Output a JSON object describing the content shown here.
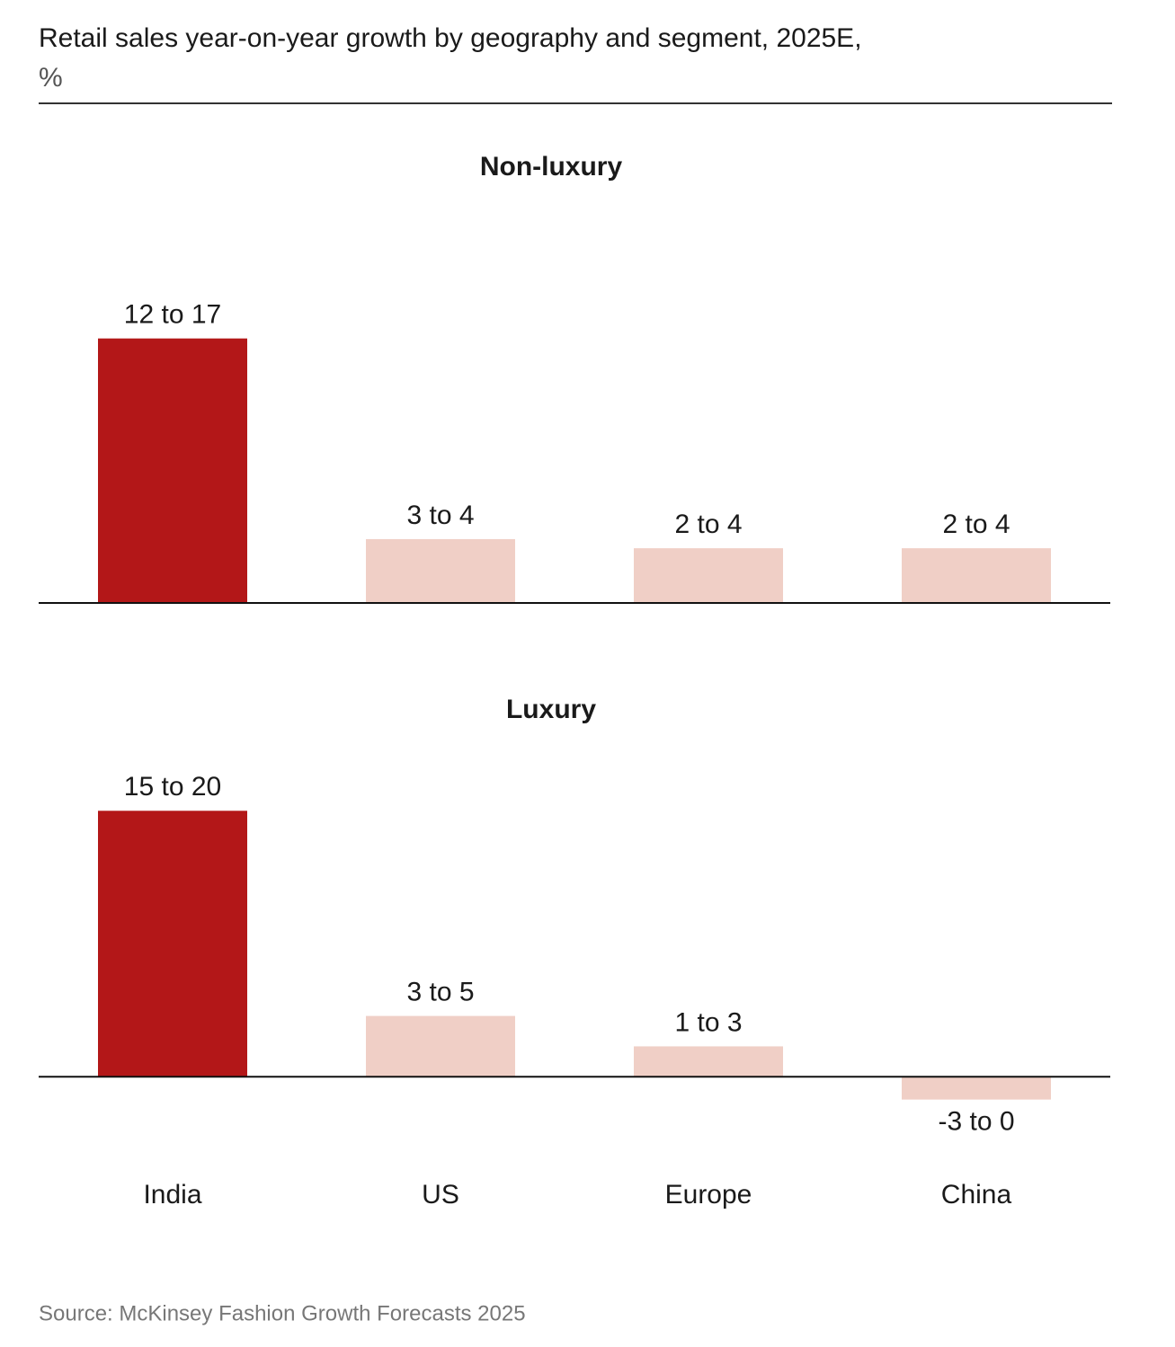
{
  "title": "Retail sales year-on-year growth by geography and segment, 2025E,",
  "unit": "%",
  "source": "Source: McKinsey Fashion Growth Forecasts 2025",
  "chart_data": [
    {
      "type": "bar",
      "title": "Non-luxury",
      "values": [
        14.5,
        3.5,
        3,
        3
      ],
      "value_labels": [
        "12 to 17",
        "3 to 4",
        "2 to 4",
        "2 to 4"
      ],
      "colors": [
        "#b31718",
        "#f0cfc6",
        "#f0cfc6",
        "#f0cfc6"
      ],
      "ylim": [
        0,
        20
      ]
    },
    {
      "type": "bar",
      "title": "Luxury",
      "categories": [
        "India",
        "US",
        "Europe",
        "China"
      ],
      "values": [
        17.5,
        4,
        2,
        -1.5
      ],
      "value_labels": [
        "15 to 20",
        "3 to 5",
        "1 to 3",
        "-3 to 0"
      ],
      "colors": [
        "#b31718",
        "#f0cfc6",
        "#f0cfc6",
        "#f0cfc6"
      ],
      "ylim": [
        -3,
        20
      ]
    }
  ]
}
